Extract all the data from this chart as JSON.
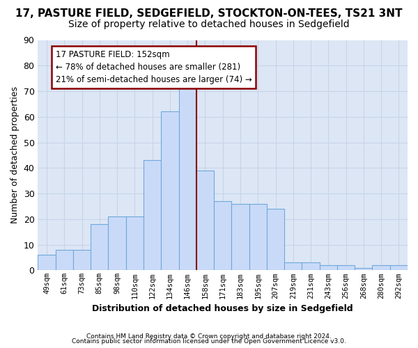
{
  "title": "17, PASTURE FIELD, SEDGEFIELD, STOCKTON-ON-TEES, TS21 3NT",
  "subtitle": "Size of property relative to detached houses in Sedgefield",
  "xlabel": "Distribution of detached houses by size in Sedgefield",
  "ylabel": "Number of detached properties",
  "bin_labels": [
    "49sqm",
    "61sqm",
    "73sqm",
    "85sqm",
    "98sqm",
    "110sqm",
    "122sqm",
    "134sqm",
    "146sqm",
    "158sqm",
    "171sqm",
    "183sqm",
    "195sqm",
    "207sqm",
    "219sqm",
    "231sqm",
    "243sqm",
    "256sqm",
    "268sqm",
    "280sqm",
    "292sqm"
  ],
  "bar_heights": [
    6,
    8,
    8,
    18,
    21,
    21,
    43,
    62,
    71,
    39,
    27,
    26,
    26,
    24,
    3,
    3,
    2,
    2,
    1,
    2,
    2
  ],
  "bar_color": "#c9daf8",
  "bar_edge_color": "#6fa8dc",
  "vline_bin_index": 8,
  "vline_color": "#8b0000",
  "annotation_title": "17 PASTURE FIELD: 152sqm",
  "annotation_line1": "← 78% of detached houses are smaller (281)",
  "annotation_line2": "21% of semi-detached houses are larger (74) →",
  "annotation_box_color": "#8b0000",
  "annotation_bg": "#ffffff",
  "ylim_max": 90,
  "footer1": "Contains HM Land Registry data © Crown copyright and database right 2024.",
  "footer2": "Contains public sector information licensed under the Open Government Licence v3.0.",
  "plot_bg_color": "#dce6f5",
  "fig_bg_color": "#ffffff",
  "grid_color": "#c8d4e8",
  "title_fontsize": 11,
  "subtitle_fontsize": 10,
  "annot_fontsize": 8.5,
  "ylabel_fontsize": 9,
  "xlabel_fontsize": 9,
  "tick_fontsize": 7.5,
  "ytick_fontsize": 9
}
